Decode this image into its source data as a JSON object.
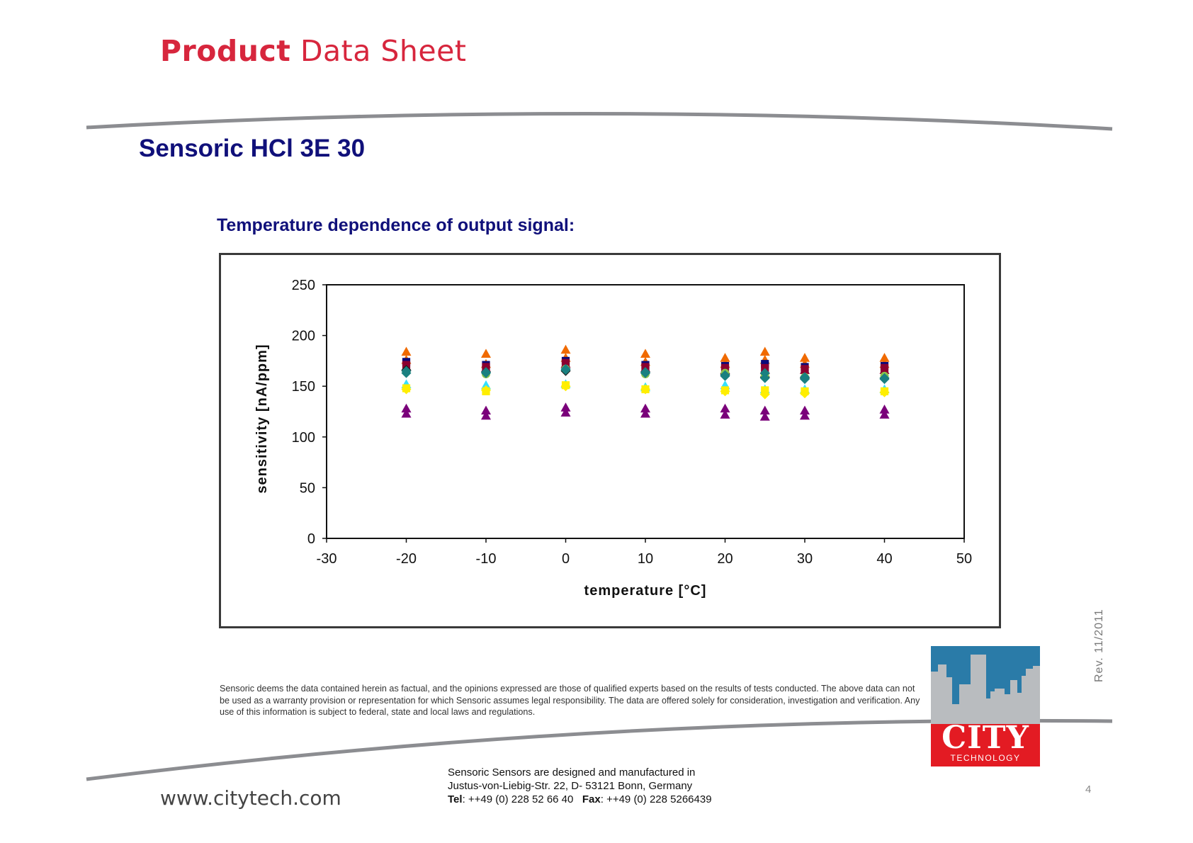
{
  "header": {
    "title_bold": "Product",
    "title_rest": "Data Sheet"
  },
  "product_name": "Sensoric HCl 3E 30",
  "chart_heading": "Temperature dependence of  output signal:",
  "chart_data": {
    "type": "scatter",
    "title": "",
    "xlabel": "temperature [°C]",
    "ylabel": "sensitivity [nA/ppm]",
    "xlim": [
      -30,
      50
    ],
    "ylim": [
      0,
      250
    ],
    "x_ticks": [
      "-30",
      "-20",
      "-10",
      "0",
      "10",
      "20",
      "30",
      "40",
      "50"
    ],
    "y_ticks": [
      "0",
      "50",
      "100",
      "150",
      "200",
      "250"
    ],
    "grid": false,
    "legend": "none",
    "x": [
      -20,
      -10,
      0,
      10,
      20,
      25,
      30,
      40
    ],
    "series": [
      {
        "marker": "triangle",
        "color": "#f06a00",
        "values": [
          184,
          182,
          186,
          182,
          178,
          184,
          178,
          178
        ]
      },
      {
        "marker": "triangle",
        "color": "#f06a00",
        "values": [
          176,
          172,
          178,
          174,
          172,
          176,
          172,
          172
        ]
      },
      {
        "marker": "square",
        "color": "#0a0a7a",
        "values": [
          174,
          171,
          175,
          171,
          170,
          172,
          169,
          170
        ]
      },
      {
        "marker": "square",
        "color": "#8b0030",
        "values": [
          171,
          169,
          173,
          169,
          168,
          168,
          167,
          168
        ]
      },
      {
        "marker": "triangle",
        "color": "#8b0030",
        "values": [
          169,
          168,
          172,
          168,
          166,
          166,
          166,
          166
        ]
      },
      {
        "marker": "diamond",
        "color": "#1a1a1a",
        "values": [
          166,
          164,
          165,
          163,
          162,
          159,
          158,
          158
        ]
      },
      {
        "marker": "circle",
        "color": "#8ac34a",
        "values": [
          164,
          162,
          167,
          162,
          163,
          161,
          159,
          160
        ]
      },
      {
        "marker": "diamond",
        "color": "#1a8080",
        "values": [
          165,
          164,
          167,
          164,
          161,
          163,
          159,
          158
        ]
      },
      {
        "marker": "diamond",
        "color": "#1a8080",
        "values": [
          163,
          163,
          166,
          163,
          160,
          158,
          157,
          157
        ]
      },
      {
        "marker": "triangle",
        "color": "#33e0ff",
        "values": [
          152,
          151,
          152,
          149,
          151,
          147,
          147,
          147
        ]
      },
      {
        "marker": "diamond",
        "color": "#ffee00",
        "values": [
          147,
          146,
          150,
          147,
          145,
          142,
          143,
          144
        ]
      },
      {
        "marker": "square",
        "color": "#ffee00",
        "values": [
          148,
          145,
          151,
          147,
          146,
          146,
          145,
          145
        ]
      },
      {
        "marker": "triangle",
        "color": "#7a007a",
        "values": [
          128,
          126,
          129,
          128,
          128,
          126,
          126,
          127
        ]
      },
      {
        "marker": "triangle",
        "color": "#7a007a",
        "values": [
          123,
          121,
          124,
          123,
          122,
          120,
          121,
          122
        ]
      }
    ]
  },
  "disclaimer": "Sensoric deems the data contained herein as factual, and the opinions expressed are those of qualified experts based on the results of tests conducted. The above data can not be used as a warranty provision or representation for which Sensoric assumes legal responsibility. The data are offered solely for consideration, investigation and verification. Any use of this information is subject to federal, state and local laws and regulations.",
  "revision": "Rev.  11/2011",
  "logo": {
    "name": "CITY",
    "subtitle": "TECHNOLOGY",
    "colors": {
      "sky": "#2a7ba8",
      "building": "#b9bcbf",
      "base": "#e31b23"
    }
  },
  "website": "www.citytech.com",
  "contact": {
    "line1": "Sensoric Sensors are designed and manufactured in",
    "line2": "Justus-von-Liebig-Str. 22, D- 53121 Bonn, Germany",
    "tel_label": "Tel",
    "tel": ": ++49 (0) 228 52 66 40",
    "fax_label": "Fax",
    "fax": ": ++49 (0) 228 5266439"
  },
  "page_number": "4"
}
